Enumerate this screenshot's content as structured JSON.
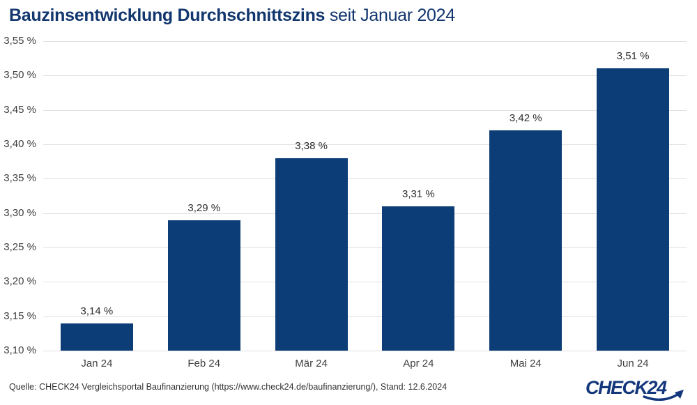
{
  "title": {
    "bold": "Bauzinsentwicklung Durchschnittszins",
    "regular": "seit Januar 2024"
  },
  "source": "Quelle: CHECK24 Vergleichsportal Baufinanzierung (https://www.check24.de/baufinanzierung/), Stand: 12.6.2024",
  "logo": {
    "text": "CHECK24"
  },
  "colors": {
    "bar": "#0c3d76",
    "title": "#12366e",
    "grid": "#e0e0e0",
    "axis_text": "#3f3f3f",
    "label_text": "#2d2d2d",
    "logo": "#14377c"
  },
  "chart_data": {
    "type": "bar",
    "title": "Bauzinsentwicklung Durchschnittszins seit Januar 2024",
    "categories": [
      "Jan 24",
      "Feb 24",
      "Mär 24",
      "Apr 24",
      "Mai 24",
      "Jun 24"
    ],
    "values": [
      3.14,
      3.29,
      3.38,
      3.31,
      3.42,
      3.51
    ],
    "value_labels": [
      "3,14 %",
      "3,29 %",
      "3,38 %",
      "3,31 %",
      "3,42 %",
      "3,51 %"
    ],
    "xlabel": "",
    "ylabel": "",
    "ylim": [
      3.1,
      3.55
    ],
    "grid": true,
    "legend": false,
    "yticks": [
      {
        "value": 3.55,
        "label": "3,55 %"
      },
      {
        "value": 3.5,
        "label": "3,50 %"
      },
      {
        "value": 3.45,
        "label": "3,45 %"
      },
      {
        "value": 3.4,
        "label": "3,40 %"
      },
      {
        "value": 3.35,
        "label": "3,35 %"
      },
      {
        "value": 3.3,
        "label": "3,30 %"
      },
      {
        "value": 3.25,
        "label": "3,25 %"
      },
      {
        "value": 3.2,
        "label": "3,20 %"
      },
      {
        "value": 3.15,
        "label": "3,15 %"
      },
      {
        "value": 3.1,
        "label": "3,10 %"
      }
    ]
  }
}
